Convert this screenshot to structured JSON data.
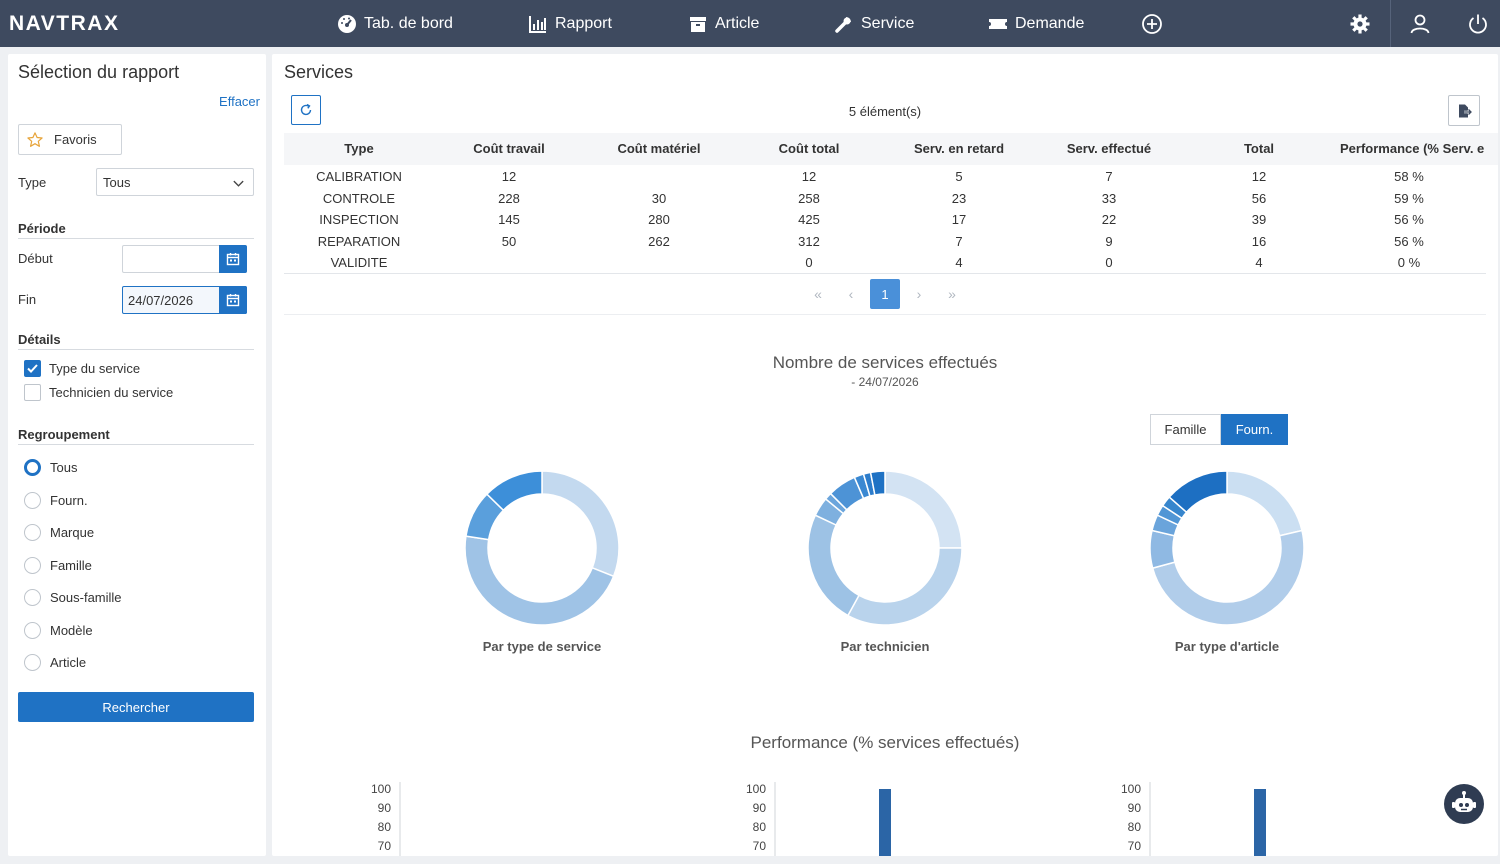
{
  "app": {
    "logo": "NAVTRAX"
  },
  "nav": [
    {
      "label": "Tab. de bord",
      "icon": "dashboard-icon"
    },
    {
      "label": "Rapport",
      "icon": "bar-chart-icon"
    },
    {
      "label": "Article",
      "icon": "box-icon"
    },
    {
      "label": "Service",
      "icon": "wrench-icon"
    },
    {
      "label": "Demande",
      "icon": "ticket-icon"
    }
  ],
  "top_icons": [
    "add-circle-icon",
    "gear-icon",
    "user-icon",
    "power-icon"
  ],
  "sidebar": {
    "title": "Sélection du rapport",
    "clear": "Effacer",
    "favorites": "Favoris",
    "type_label": "Type",
    "type_value": "Tous",
    "period_title": "Période",
    "start_label": "Début",
    "start_value": "",
    "end_label": "Fin",
    "end_value": "24/07/2026",
    "details_title": "Détails",
    "details": [
      {
        "label": "Type du service",
        "checked": true
      },
      {
        "label": "Technicien du service",
        "checked": false
      }
    ],
    "grouping_title": "Regroupement",
    "grouping": [
      {
        "label": "Tous",
        "selected": true
      },
      {
        "label": "Fourn.",
        "selected": false
      },
      {
        "label": "Marque",
        "selected": false
      },
      {
        "label": "Famille",
        "selected": false
      },
      {
        "label": "Sous-famille",
        "selected": false
      },
      {
        "label": "Modèle",
        "selected": false
      },
      {
        "label": "Article",
        "selected": false
      }
    ],
    "search": "Rechercher"
  },
  "main": {
    "title": "Services",
    "count": "5 élément(s)",
    "columns": [
      "Type",
      "Coût travail",
      "Coût matériel",
      "Coût total",
      "Serv. en retard",
      "Serv. effectué",
      "Total",
      "Performance (% Serv. e"
    ],
    "rows": [
      [
        "CALIBRATION",
        "12",
        "",
        "12",
        "5",
        "7",
        "12",
        "58 %"
      ],
      [
        "CONTROLE",
        "228",
        "30",
        "258",
        "23",
        "33",
        "56",
        "59 %"
      ],
      [
        "INSPECTION",
        "145",
        "280",
        "425",
        "17",
        "22",
        "39",
        "56 %"
      ],
      [
        "REPARATION",
        "50",
        "262",
        "312",
        "7",
        "9",
        "16",
        "56 %"
      ],
      [
        "VALIDITE",
        "",
        "",
        "0",
        "4",
        "0",
        "4",
        "0 %"
      ]
    ],
    "pager": {
      "first": "«",
      "prev": "‹",
      "current": "1",
      "next": "›",
      "last": "»"
    },
    "chart1_title": "Nombre de services effectués",
    "chart1_subtitle": "- 24/07/2026",
    "toggle_famille": "Famille",
    "toggle_fourn": "Fourn.",
    "chart2_title": "Performance (% services effectués)"
  },
  "colors": {
    "accent": "#1f72c4",
    "topbar": "#3e4a5f"
  },
  "chart_data": [
    {
      "type": "pie",
      "title": "Par type de service",
      "categories": [
        "CALIBRATION",
        "CONTROLE",
        "INSPECTION",
        "REPARATION",
        "VALIDITE"
      ],
      "values": [
        7,
        33,
        22,
        9,
        0
      ],
      "colors": [
        "#3d8fd9",
        "#5a9fdc",
        "#9fc3e6",
        "#c3d9ef",
        "#d6e5f4"
      ],
      "order_from_top_clockwise": [
        2,
        1,
        0,
        3
      ]
    },
    {
      "type": "pie",
      "title": "Par technicien",
      "values": [
        0.25,
        0.33,
        0.24,
        0.04,
        0.015,
        0.06,
        0.02,
        0.015,
        0.03
      ],
      "colors": [
        "#d3e3f3",
        "#b9d3ec",
        "#9dc2e5",
        "#7eb0df",
        "#6ba5dc",
        "#4d93d6",
        "#3a88d2",
        "#2c7ccb",
        "#1f72c4"
      ]
    },
    {
      "type": "pie",
      "title": "Par type d'article",
      "values": [
        0.19,
        0.44,
        0.07,
        0.03,
        0.02,
        0.02,
        0.12
      ],
      "colors": [
        "#cbdff2",
        "#b1cdea",
        "#8fb9e3",
        "#6aa4db",
        "#5196d5",
        "#3786cd",
        "#1d6fc2"
      ]
    },
    {
      "type": "bar",
      "title": "Performance (% services effectués)",
      "ylim": [
        70,
        100
      ],
      "yticks": [
        100,
        90,
        80,
        70
      ],
      "panels": [
        {
          "values": []
        },
        {
          "values": [
            100
          ]
        },
        {
          "values": [
            100
          ]
        }
      ],
      "color": "#2b65a6"
    }
  ]
}
